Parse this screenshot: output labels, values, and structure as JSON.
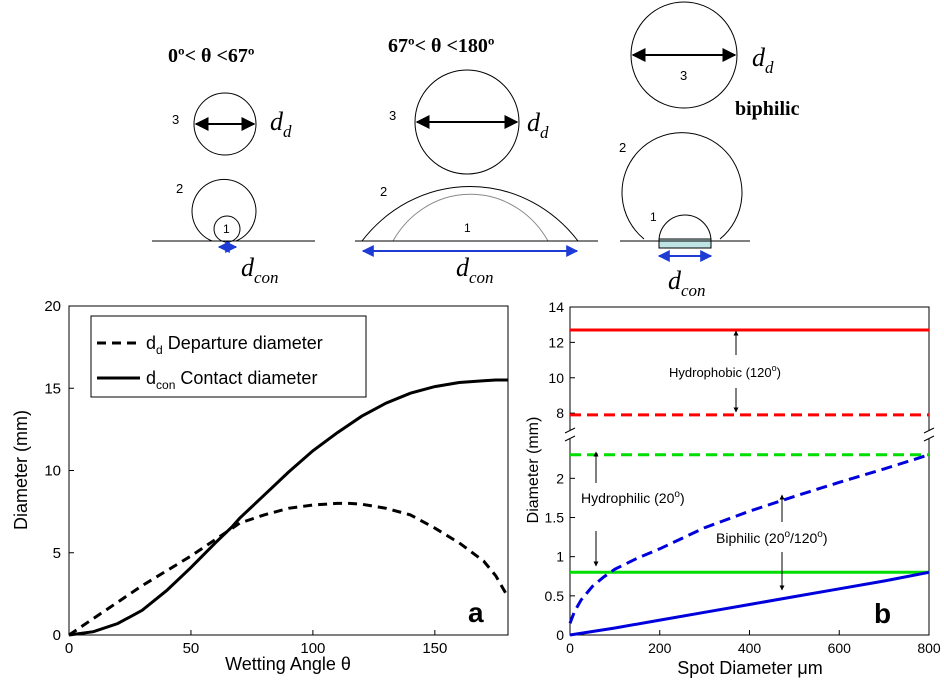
{
  "schematic": {
    "group1": {
      "range": "0º< θ <67º",
      "label_d": "d",
      "sub_d": "d",
      "label_con": "d",
      "sub_con": "con",
      "n1": "1",
      "n2": "2",
      "n3": "3"
    },
    "group2": {
      "range": "67º< θ <180º",
      "label_d": "d",
      "sub_d": "d",
      "label_con": "d",
      "sub_con": "con",
      "n1": "1",
      "n2": "2",
      "n3": "3"
    },
    "group3": {
      "range": "biphilic",
      "label_d": "d",
      "sub_d": "d",
      "label_con": "d",
      "sub_con": "con",
      "n1": "1",
      "n2": "2",
      "n3": "3"
    }
  },
  "chart_data": [
    {
      "type": "line",
      "panel_label": "a",
      "xlabel": "Wetting Angle θ",
      "ylabel": "Diameter (mm)",
      "xlim": [
        0,
        180
      ],
      "ylim": [
        0,
        20
      ],
      "xticks": [
        "0",
        "50",
        "100",
        "150"
      ],
      "yticks": [
        "0",
        "5",
        "10",
        "15",
        "20"
      ],
      "legend_position": "top-left",
      "series": [
        {
          "name": "d",
          "name_sub": "d",
          "name_rest": " Departure diameter",
          "style": "dashed",
          "color": "#000000",
          "x": [
            0,
            10,
            20,
            30,
            40,
            50,
            60,
            67,
            70,
            80,
            90,
            100,
            110,
            115,
            120,
            130,
            140,
            150,
            160,
            170,
            175,
            180
          ],
          "y": [
            0,
            1.0,
            2.0,
            3.0,
            3.9,
            4.8,
            5.8,
            6.5,
            6.8,
            7.3,
            7.7,
            7.9,
            8.0,
            8.0,
            7.95,
            7.7,
            7.3,
            6.5,
            5.6,
            4.5,
            3.6,
            2.3
          ]
        },
        {
          "name": "d",
          "name_sub": "con",
          "name_rest": " Contact diameter",
          "style": "solid",
          "color": "#000000",
          "x": [
            0,
            10,
            20,
            30,
            40,
            50,
            60,
            67,
            70,
            80,
            90,
            100,
            110,
            120,
            130,
            140,
            150,
            160,
            170,
            175,
            180
          ],
          "y": [
            0,
            0.2,
            0.7,
            1.5,
            2.7,
            4.1,
            5.6,
            6.6,
            7.1,
            8.5,
            9.9,
            11.2,
            12.3,
            13.3,
            14.1,
            14.7,
            15.1,
            15.35,
            15.45,
            15.5,
            15.5
          ]
        }
      ]
    },
    {
      "type": "line",
      "panel_label": "b",
      "xlabel": "Spot Diameter μm",
      "ylabel": "Diameter (mm)",
      "xlim": [
        0,
        800
      ],
      "ylim_lower": [
        0,
        2.4
      ],
      "ylim_upper": [
        7.5,
        14
      ],
      "xticks": [
        "0",
        "200",
        "400",
        "600",
        "800"
      ],
      "yticks_lower": [
        "0",
        "0.5",
        "1",
        "1.5",
        "2"
      ],
      "yticks_upper": [
        "8",
        "10",
        "12",
        "14"
      ],
      "axis_break": true,
      "annotations": [
        {
          "text": "Hydrophobic (120",
          "sup": "o",
          "tail": ")"
        },
        {
          "text": "Hydrophilic (20",
          "sup": "o",
          "tail": ")"
        },
        {
          "text": "Biphilic (20",
          "sup": "o",
          "mid": "/120",
          "sup2": "o",
          "tail": ")"
        }
      ],
      "series": [
        {
          "style": "solid",
          "color": "#ff0000",
          "x": [
            0,
            800
          ],
          "y": [
            12.7,
            12.7
          ]
        },
        {
          "style": "dashed",
          "color": "#ff0000",
          "x": [
            0,
            800
          ],
          "y": [
            7.9,
            7.9
          ]
        },
        {
          "style": "dashed",
          "color": "#00dd00",
          "x": [
            0,
            800
          ],
          "y": [
            2.3,
            2.3
          ]
        },
        {
          "style": "solid",
          "color": "#00dd00",
          "x": [
            0,
            800
          ],
          "y": [
            0.8,
            0.8
          ]
        },
        {
          "style": "dashed",
          "color": "#0000dd",
          "x": [
            0,
            10,
            25,
            50,
            75,
            100,
            150,
            200,
            300,
            400,
            500,
            600,
            700,
            800
          ],
          "y": [
            0.15,
            0.3,
            0.45,
            0.62,
            0.74,
            0.84,
            0.98,
            1.1,
            1.37,
            1.58,
            1.77,
            1.95,
            2.12,
            2.3
          ]
        },
        {
          "style": "solid",
          "color": "#0000dd",
          "x": [
            0,
            100,
            200,
            300,
            400,
            500,
            600,
            700,
            800
          ],
          "y": [
            0,
            0.09,
            0.19,
            0.29,
            0.39,
            0.49,
            0.59,
            0.69,
            0.8
          ]
        }
      ]
    }
  ]
}
